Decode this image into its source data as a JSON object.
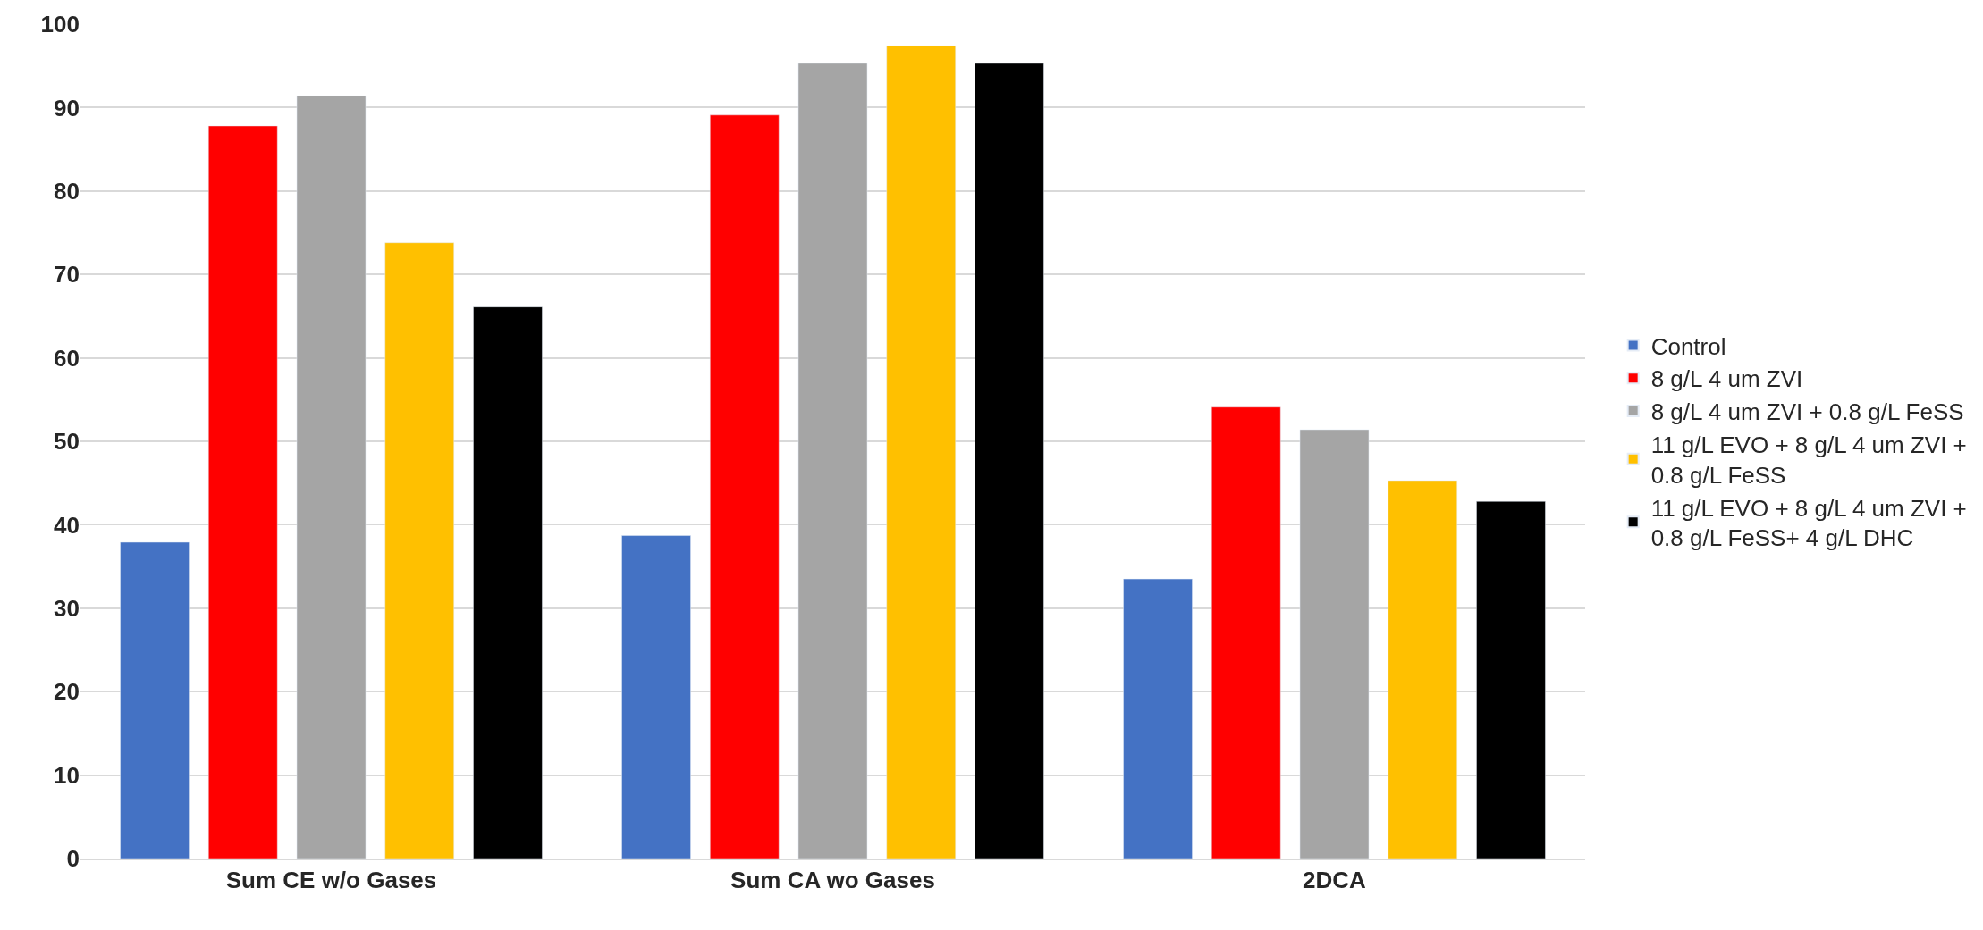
{
  "chart_data": {
    "type": "bar",
    "categories": [
      "Sum CE w/o Gases",
      "Sum CA wo Gases",
      "2DCA"
    ],
    "series": [
      {
        "name": "Control",
        "color": "#4472c4",
        "values": [
          37.9,
          38.7,
          33.5
        ]
      },
      {
        "name": "8 g/L 4 um ZVI",
        "color": "#ff0000",
        "values": [
          87.8,
          89.1,
          54.1
        ]
      },
      {
        "name": "8 g/L 4 um ZVI + 0.8 g/L FeSS",
        "color": "#a5a5a5",
        "values": [
          91.4,
          95.3,
          51.4
        ]
      },
      {
        "name": "11 g/L EVO + 8 g/L 4 um ZVI + 0.8 g/L FeSS",
        "color": "#ffc000",
        "values": [
          73.8,
          97.4,
          45.3
        ]
      },
      {
        "name": "11 g/L EVO + 8 g/L 4 um ZVI + 0.8 g/L FeSS+ 4 g/L DHC",
        "color": "#000000",
        "values": [
          66.1,
          95.3,
          42.8
        ]
      }
    ],
    "ylim": [
      0,
      100
    ],
    "yticks": [
      0,
      10,
      20,
      30,
      40,
      50,
      60,
      70,
      80,
      90,
      100
    ],
    "grid": "y",
    "legend": "right"
  }
}
